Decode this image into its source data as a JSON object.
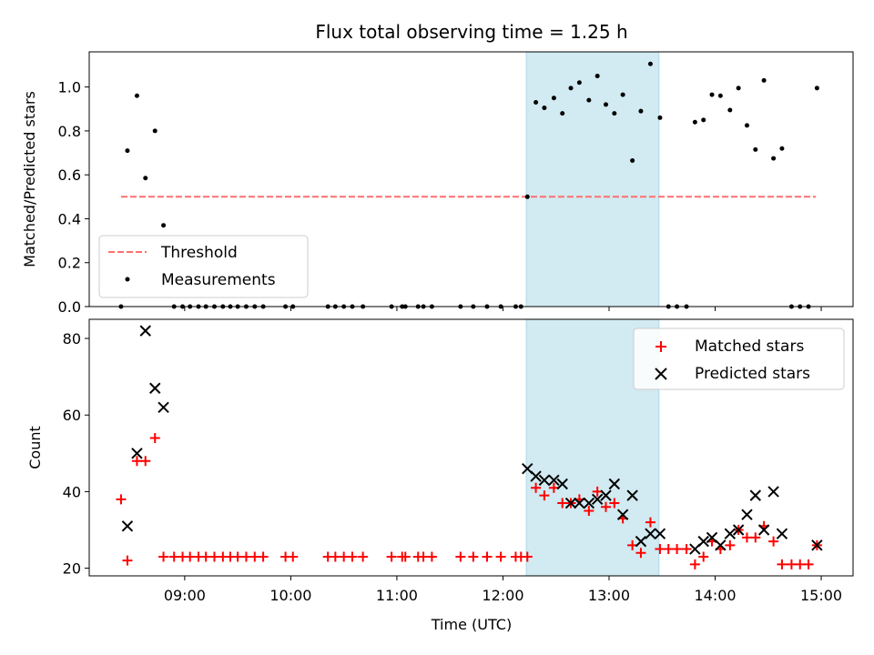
{
  "chart_data": [
    {
      "type": "scatter",
      "title": "Flux total observing time = 1.25 h",
      "xlabel": "",
      "ylabel": "Matched/Predicted stars",
      "xlim": [
        8.1,
        15.3
      ],
      "ylim": [
        0,
        1.16
      ],
      "yticks": [
        0.0,
        0.2,
        0.4,
        0.6,
        0.8,
        1.0
      ],
      "ytick_labels": [
        "0.0",
        "0.2",
        "0.4",
        "0.6",
        "0.8",
        "1.0"
      ],
      "highlight_span": {
        "x0": 12.22,
        "x1": 13.47,
        "color": "#add8e6"
      },
      "threshold": {
        "name": "Threshold",
        "value": 0.5,
        "x_from": 8.4,
        "x_to": 14.95,
        "color": "#ff6f6f"
      },
      "legend": {
        "position": "lower-left",
        "entries": [
          "Threshold",
          "Measurements"
        ]
      },
      "series": [
        {
          "name": "Measurements",
          "color": "#000000",
          "points": [
            [
              8.4,
              0.0
            ],
            [
              8.46,
              0.71
            ],
            [
              8.55,
              0.96
            ],
            [
              8.63,
              0.585
            ],
            [
              8.72,
              0.8
            ],
            [
              8.8,
              0.37
            ],
            [
              8.9,
              0.0
            ],
            [
              8.98,
              0.0
            ],
            [
              9.05,
              0.0
            ],
            [
              9.13,
              0.0
            ],
            [
              9.2,
              0.0
            ],
            [
              9.28,
              0.0
            ],
            [
              9.36,
              0.0
            ],
            [
              9.43,
              0.0
            ],
            [
              9.5,
              0.0
            ],
            [
              9.58,
              0.0
            ],
            [
              9.66,
              0.0
            ],
            [
              9.74,
              0.0
            ],
            [
              9.95,
              0.0
            ],
            [
              10.02,
              0.0
            ],
            [
              10.35,
              0.0
            ],
            [
              10.42,
              0.0
            ],
            [
              10.5,
              0.0
            ],
            [
              10.58,
              0.0
            ],
            [
              10.68,
              0.0
            ],
            [
              10.95,
              0.0
            ],
            [
              11.05,
              0.0
            ],
            [
              11.08,
              0.0
            ],
            [
              11.2,
              0.0
            ],
            [
              11.25,
              0.0
            ],
            [
              11.33,
              0.0
            ],
            [
              11.6,
              0.0
            ],
            [
              11.72,
              0.0
            ],
            [
              11.85,
              0.0
            ],
            [
              11.98,
              0.0
            ],
            [
              12.12,
              0.0
            ],
            [
              12.17,
              0.0
            ],
            [
              12.23,
              0.5
            ],
            [
              12.31,
              0.93
            ],
            [
              12.39,
              0.905
            ],
            [
              12.48,
              0.95
            ],
            [
              12.56,
              0.88
            ],
            [
              12.64,
              0.995
            ],
            [
              12.72,
              1.02
            ],
            [
              12.81,
              0.94
            ],
            [
              12.89,
              1.05
            ],
            [
              12.97,
              0.92
            ],
            [
              13.05,
              0.88
            ],
            [
              13.13,
              0.965
            ],
            [
              13.22,
              0.665
            ],
            [
              13.3,
              0.89
            ],
            [
              13.39,
              1.105
            ],
            [
              13.48,
              0.86
            ],
            [
              13.56,
              0.0
            ],
            [
              13.64,
              0.0
            ],
            [
              13.73,
              0.0
            ],
            [
              13.81,
              0.84
            ],
            [
              13.89,
              0.85
            ],
            [
              13.97,
              0.965
            ],
            [
              14.05,
              0.96
            ],
            [
              14.14,
              0.895
            ],
            [
              14.22,
              0.995
            ],
            [
              14.3,
              0.825
            ],
            [
              14.38,
              0.715
            ],
            [
              14.46,
              1.03
            ],
            [
              14.55,
              0.675
            ],
            [
              14.63,
              0.72
            ],
            [
              14.72,
              0.0
            ],
            [
              14.8,
              0.0
            ],
            [
              14.88,
              0.0
            ],
            [
              14.96,
              0.995
            ]
          ]
        }
      ]
    },
    {
      "type": "scatter",
      "title": "",
      "xlabel": "Time (UTC)",
      "ylabel": "Count",
      "xlim": [
        8.1,
        15.3
      ],
      "ylim": [
        18,
        85
      ],
      "yticks": [
        20,
        40,
        60,
        80
      ],
      "ytick_labels": [
        "20",
        "40",
        "60",
        "80"
      ],
      "xticks": [
        9,
        10,
        11,
        12,
        13,
        14,
        15
      ],
      "xtick_labels": [
        "09:00",
        "10:00",
        "11:00",
        "12:00",
        "13:00",
        "14:00",
        "15:00"
      ],
      "highlight_span": {
        "x0": 12.22,
        "x1": 13.47,
        "color": "#add8e6"
      },
      "legend": {
        "position": "top-right",
        "entries": [
          "Matched stars",
          "Predicted stars"
        ]
      },
      "series": [
        {
          "name": "Matched stars",
          "marker": "plus",
          "color": "#ff0000",
          "points": [
            [
              8.4,
              38
            ],
            [
              8.46,
              22
            ],
            [
              8.55,
              48
            ],
            [
              8.63,
              48
            ],
            [
              8.72,
              54
            ],
            [
              8.8,
              23
            ],
            [
              8.9,
              23
            ],
            [
              8.98,
              23
            ],
            [
              9.05,
              23
            ],
            [
              9.13,
              23
            ],
            [
              9.2,
              23
            ],
            [
              9.28,
              23
            ],
            [
              9.36,
              23
            ],
            [
              9.43,
              23
            ],
            [
              9.5,
              23
            ],
            [
              9.58,
              23
            ],
            [
              9.66,
              23
            ],
            [
              9.74,
              23
            ],
            [
              9.95,
              23
            ],
            [
              10.02,
              23
            ],
            [
              10.35,
              23
            ],
            [
              10.42,
              23
            ],
            [
              10.5,
              23
            ],
            [
              10.58,
              23
            ],
            [
              10.68,
              23
            ],
            [
              10.95,
              23
            ],
            [
              11.05,
              23
            ],
            [
              11.08,
              23
            ],
            [
              11.2,
              23
            ],
            [
              11.25,
              23
            ],
            [
              11.33,
              23
            ],
            [
              11.6,
              23
            ],
            [
              11.72,
              23
            ],
            [
              11.85,
              23
            ],
            [
              11.98,
              23
            ],
            [
              12.12,
              23
            ],
            [
              12.17,
              23
            ],
            [
              12.23,
              23
            ],
            [
              12.31,
              41
            ],
            [
              12.39,
              39
            ],
            [
              12.48,
              41
            ],
            [
              12.56,
              37
            ],
            [
              12.64,
              37
            ],
            [
              12.72,
              38
            ],
            [
              12.81,
              35
            ],
            [
              12.89,
              40
            ],
            [
              12.97,
              36
            ],
            [
              13.05,
              37
            ],
            [
              13.13,
              33
            ],
            [
              13.22,
              26
            ],
            [
              13.3,
              24
            ],
            [
              13.39,
              32
            ],
            [
              13.48,
              25
            ],
            [
              13.56,
              25
            ],
            [
              13.64,
              25
            ],
            [
              13.73,
              25
            ],
            [
              13.81,
              21
            ],
            [
              13.89,
              23
            ],
            [
              13.97,
              27
            ],
            [
              14.05,
              25
            ],
            [
              14.14,
              26
            ],
            [
              14.22,
              30
            ],
            [
              14.3,
              28
            ],
            [
              14.38,
              28
            ],
            [
              14.46,
              31
            ],
            [
              14.55,
              27
            ],
            [
              14.63,
              21
            ],
            [
              14.72,
              21
            ],
            [
              14.8,
              21
            ],
            [
              14.88,
              21
            ],
            [
              14.96,
              26
            ]
          ]
        },
        {
          "name": "Predicted stars",
          "marker": "x",
          "color": "#000000",
          "points": [
            [
              8.46,
              31
            ],
            [
              8.55,
              50
            ],
            [
              8.63,
              82
            ],
            [
              8.72,
              67
            ],
            [
              8.8,
              62
            ],
            [
              12.23,
              46
            ],
            [
              12.31,
              44
            ],
            [
              12.39,
              43
            ],
            [
              12.48,
              43
            ],
            [
              12.56,
              42
            ],
            [
              12.64,
              37
            ],
            [
              12.72,
              37
            ],
            [
              12.81,
              37
            ],
            [
              12.89,
              38
            ],
            [
              12.97,
              39
            ],
            [
              13.05,
              42
            ],
            [
              13.13,
              34
            ],
            [
              13.22,
              39
            ],
            [
              13.3,
              27
            ],
            [
              13.39,
              29
            ],
            [
              13.48,
              29
            ],
            [
              13.81,
              25
            ],
            [
              13.89,
              27
            ],
            [
              13.97,
              28
            ],
            [
              14.05,
              26
            ],
            [
              14.14,
              29
            ],
            [
              14.22,
              30
            ],
            [
              14.3,
              34
            ],
            [
              14.38,
              39
            ],
            [
              14.46,
              30
            ],
            [
              14.55,
              40
            ],
            [
              14.63,
              29
            ],
            [
              14.96,
              26
            ]
          ]
        }
      ]
    }
  ]
}
